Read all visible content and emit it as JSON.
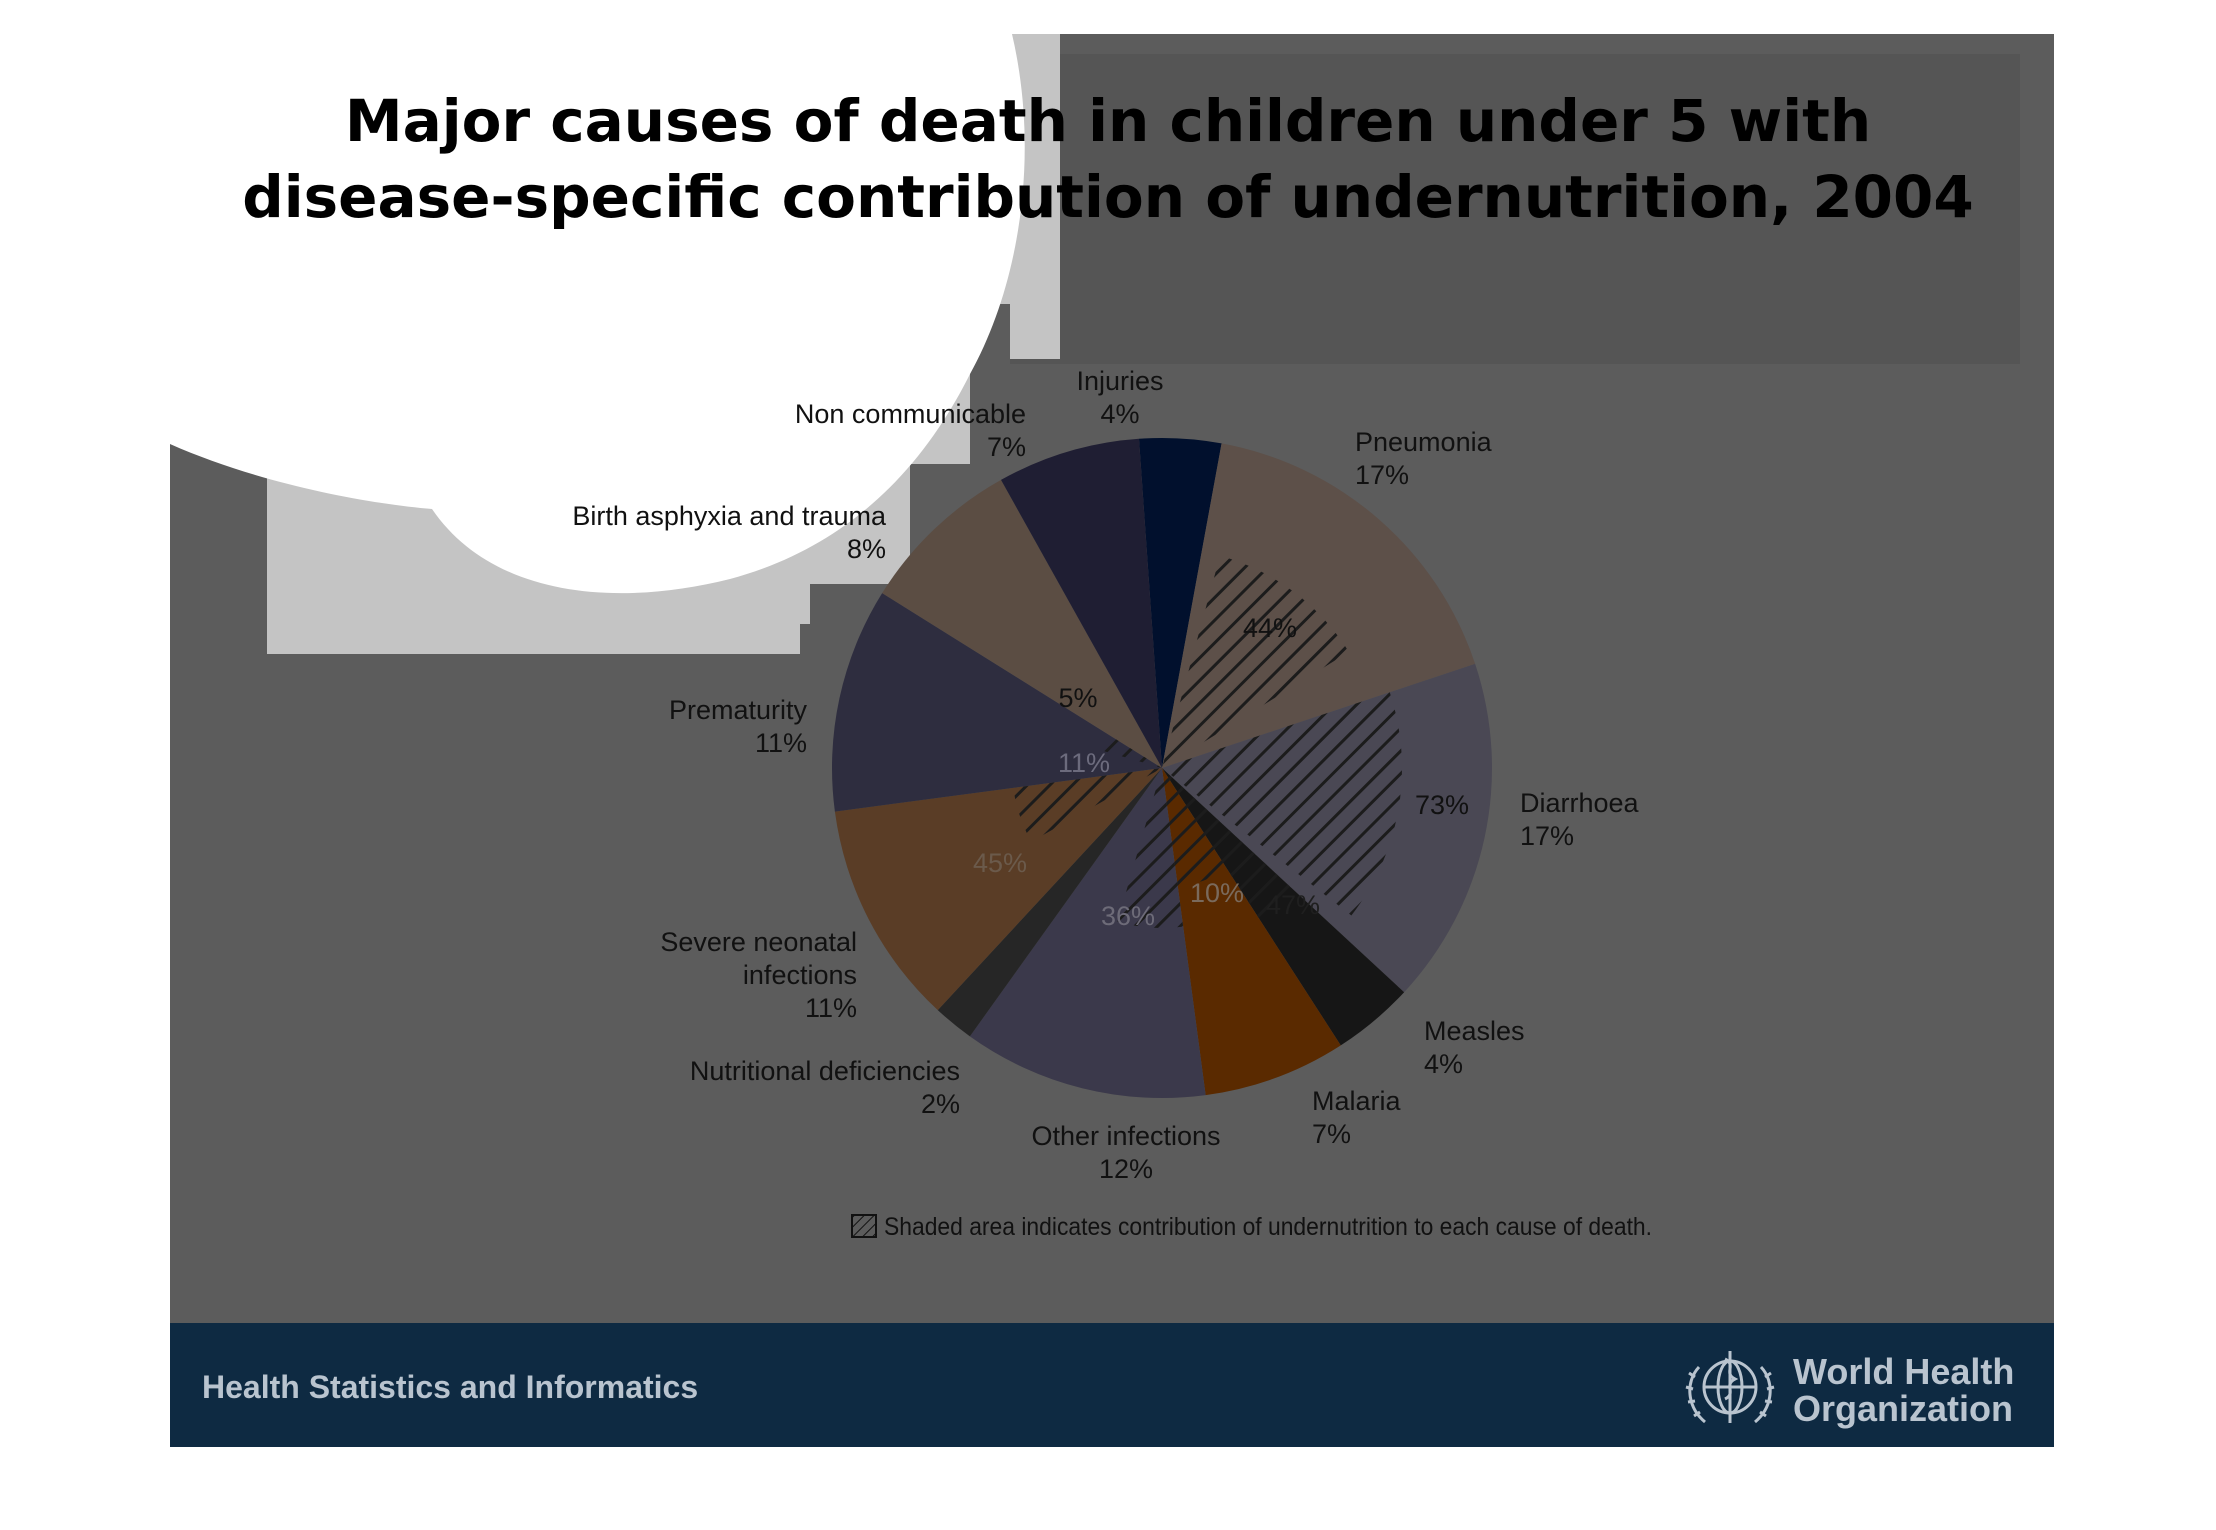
{
  "title": {
    "line1": "Major causes of death in children under 5 with",
    "line2": "disease-specific contribution of undernutrition, 2004"
  },
  "chart_data": {
    "type": "pie",
    "title": "Major causes of death in children under 5 with disease-specific contribution of undernutrition, 2004",
    "slices": [
      {
        "label": "Injuries",
        "value": 4,
        "value_label": "4%",
        "color": "#01102d"
      },
      {
        "label": "Pneumonia",
        "value": 17,
        "value_label": "17%",
        "color": "#5d5049",
        "undernutrition_label": "44%"
      },
      {
        "label": "Diarrhoea",
        "value": 17,
        "value_label": "17%",
        "color": "#4a4854",
        "undernutrition_label": "73%"
      },
      {
        "label": "Measles",
        "value": 4,
        "value_label": "4%",
        "color": "#161616",
        "undernutrition_label": "47%"
      },
      {
        "label": "Malaria",
        "value": 7,
        "value_label": "7%",
        "color": "#5a2a00",
        "undernutrition_label": "10%"
      },
      {
        "label": "Other infections",
        "value": 12,
        "value_label": "12%",
        "color": "#3b394b",
        "undernutrition_label": "36%"
      },
      {
        "label": "Nutritional deficiencies",
        "value": 2,
        "value_label": "2%",
        "color": "#262626"
      },
      {
        "label": "Severe neonatal infections",
        "value": 11,
        "value_label": "11%",
        "color": "#5a3d26",
        "undernutrition_label": "45%"
      },
      {
        "label": "Prematurity",
        "value": 11,
        "value_label": "11%",
        "color": "#2e2d3f",
        "undernutrition_label": "11%"
      },
      {
        "label": "Birth asphyxia and trauma",
        "value": 8,
        "value_label": "8%",
        "color": "#5b4d43",
        "undernutrition_label": "5%"
      },
      {
        "label": "Non communicable",
        "value": 7,
        "value_label": "7%",
        "color": "#1f1e33"
      }
    ],
    "legend_note": "Shaded area indicates contribution of undernutrition to each cause of death."
  },
  "footer": {
    "text": "Health Statistics and Informatics",
    "org_line1": "World Health",
    "org_line2": "Organization"
  }
}
